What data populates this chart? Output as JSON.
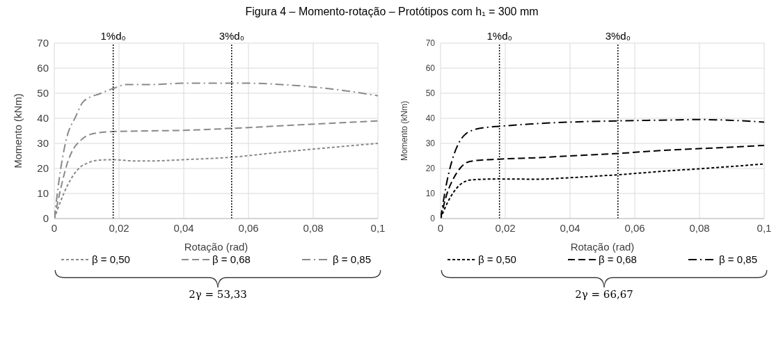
{
  "chart_data": [
    {
      "type": "line",
      "title": "Figura 4 – Momento-rotação – Protótipos com h₁ = 300 mm",
      "xlabel": "Rotação (rad)",
      "ylabel": "Momento (kNm)",
      "annotations": [
        "2γ = 53,33"
      ],
      "xlim": [
        0,
        0.1
      ],
      "ylim": [
        0,
        70
      ],
      "xticks": [
        0,
        {
          "value": 0.02,
          "label": "0,02"
        },
        {
          "value": 0.04,
          "label": "0,04"
        },
        {
          "value": 0.06,
          "label": "0,06"
        },
        {
          "value": 0.08,
          "label": "0,08"
        },
        {
          "value": 0.1,
          "label": "0,1"
        }
      ],
      "yticks": [
        0,
        10,
        20,
        30,
        40,
        50,
        60,
        70
      ],
      "grid": true,
      "legend": "bottom",
      "ref_lines": [
        {
          "axis": "x",
          "value": 0.0182,
          "label": "1%d₀",
          "color": "#000000",
          "line_style": "dotted"
        },
        {
          "axis": "x",
          "value": 0.0548,
          "label": "3%d₀",
          "color": "#000000",
          "line_style": "dotted"
        }
      ],
      "series": [
        {
          "name": "β = 0,50",
          "color": "#898989",
          "line_style": "dotted",
          "x": [
            0,
            0.002,
            0.004,
            0.006,
            0.008,
            0.01,
            0.014,
            0.018,
            0.025,
            0.03,
            0.04,
            0.055,
            0.07,
            0.085,
            0.1
          ],
          "values": [
            0,
            7,
            13,
            17.5,
            20.5,
            22,
            23.3,
            23.5,
            23,
            23,
            23.5,
            24.5,
            26.5,
            28.3,
            30
          ]
        },
        {
          "name": "β = 0,68",
          "color": "#898989",
          "line_style": "dashed",
          "x": [
            0,
            0.002,
            0.004,
            0.006,
            0.008,
            0.01,
            0.014,
            0.018,
            0.03,
            0.04,
            0.055,
            0.07,
            0.085,
            0.1
          ],
          "values": [
            0,
            12,
            22,
            28,
            31,
            33,
            34.3,
            34.7,
            35,
            35.2,
            36,
            37,
            38,
            39
          ]
        },
        {
          "name": "β = 0,85",
          "color": "#898989",
          "line_style": "dashdot",
          "x": [
            0,
            0.002,
            0.004,
            0.0065,
            0.009,
            0.0144,
            0.0184,
            0.0224,
            0.03,
            0.04,
            0.055,
            0.06,
            0.07,
            0.08,
            0.09,
            0.1
          ],
          "values": [
            0,
            20,
            33,
            40.4,
            46.7,
            50,
            52,
            53.5,
            53.5,
            54,
            54,
            54,
            53.5,
            52.5,
            51,
            49
          ]
        }
      ]
    },
    {
      "type": "line",
      "xlabel": "Rotação (rad)",
      "ylabel": "Momento (kNm)",
      "annotations": [
        "2γ = 66,67"
      ],
      "xlim": [
        0,
        0.1
      ],
      "ylim": [
        0,
        70
      ],
      "xticks": [
        0,
        {
          "value": 0.02,
          "label": "0,02"
        },
        {
          "value": 0.04,
          "label": "0,04"
        },
        {
          "value": 0.06,
          "label": "0,06"
        },
        {
          "value": 0.08,
          "label": "0,08"
        },
        {
          "value": 0.1,
          "label": "0,1"
        }
      ],
      "yticks": [
        0,
        10,
        20,
        30,
        40,
        50,
        60,
        70
      ],
      "grid": true,
      "legend": "bottom",
      "ref_lines": [
        {
          "axis": "x",
          "value": 0.0182,
          "label": "1%d₀",
          "color": "#000000",
          "line_style": "dotted"
        },
        {
          "axis": "x",
          "value": 0.0548,
          "label": "3%d₀",
          "color": "#000000",
          "line_style": "dotted"
        }
      ],
      "series": [
        {
          "name": "β = 0,50",
          "color": "#000000",
          "line_style": "dotted",
          "x": [
            0,
            0.002,
            0.004,
            0.006,
            0.008,
            0.01,
            0.018,
            0.03,
            0.04,
            0.055,
            0.07,
            0.085,
            0.1
          ],
          "values": [
            0,
            6,
            10.5,
            13.5,
            15,
            15.5,
            15.8,
            15.7,
            16.3,
            17.5,
            19,
            20.3,
            21.8
          ]
        },
        {
          "name": "β = 0,68",
          "color": "#000000",
          "line_style": "dashed",
          "x": [
            0,
            0.002,
            0.004,
            0.006,
            0.008,
            0.01,
            0.018,
            0.03,
            0.04,
            0.055,
            0.07,
            0.085,
            0.1
          ],
          "values": [
            0,
            10,
            16,
            20,
            22.3,
            23,
            23.7,
            24.3,
            25,
            26,
            27.3,
            28.2,
            29.2
          ]
        },
        {
          "name": "β = 0,85",
          "color": "#000000",
          "line_style": "dashdot",
          "x": [
            0,
            0.002,
            0.004,
            0.006,
            0.008,
            0.01,
            0.015,
            0.018,
            0.025,
            0.04,
            0.055,
            0.07,
            0.08,
            0.09,
            0.1
          ],
          "values": [
            0,
            15,
            25,
            31,
            34,
            35.3,
            36.5,
            36.8,
            37.5,
            38.5,
            39,
            39.3,
            39.5,
            39.2,
            38.5
          ]
        }
      ]
    }
  ]
}
